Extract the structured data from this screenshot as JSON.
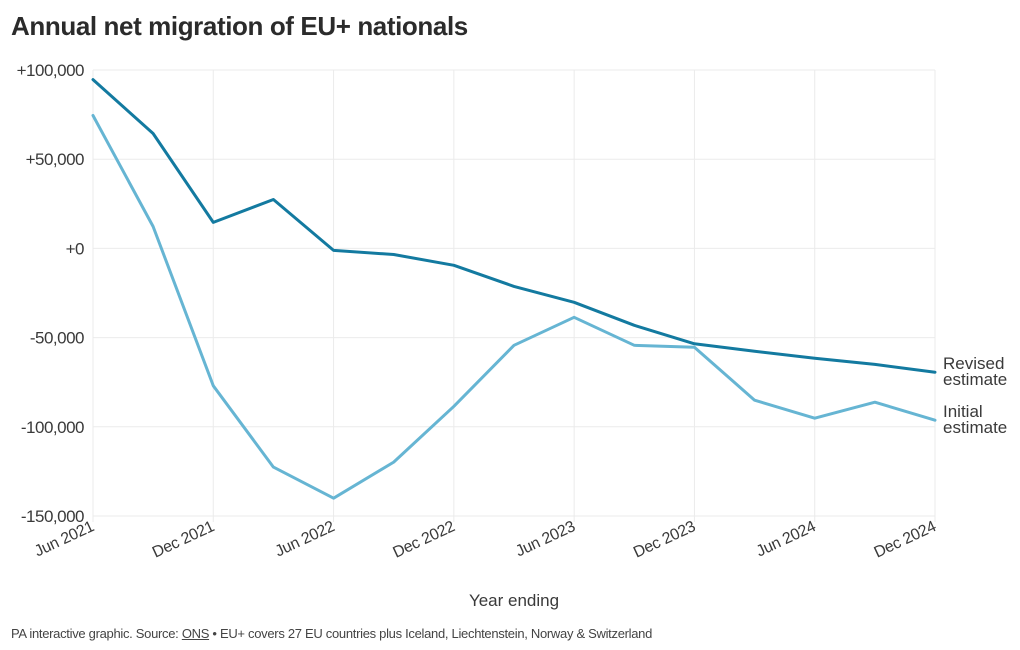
{
  "title": "Annual net migration of EU+ nationals",
  "footer": {
    "prefix": "PA interactive graphic. Source: ",
    "link": "ONS",
    "suffix": " • EU+ covers 27 EU countries plus Iceland, Liechtenstein, Norway & Switzerland"
  },
  "colors": {
    "revised": "#137aa0",
    "initial": "#66b5d3",
    "grid": "#ebebeb"
  },
  "chart_data": {
    "type": "line",
    "title": "Annual net migration of EU+ nationals",
    "xlabel": "Year ending",
    "ylabel": "",
    "x": [
      "Jun 2021",
      "Sep 2021",
      "Dec 2021",
      "Mar 2022",
      "Jun 2022",
      "Sep 2022",
      "Dec 2022",
      "Mar 2023",
      "Jun 2023",
      "Sep 2023",
      "Dec 2023",
      "Mar 2024",
      "Jun 2024",
      "Sep 2024",
      "Dec 2024"
    ],
    "xticks": [
      "Jun 2021",
      "Dec 2021",
      "Jun 2022",
      "Dec 2022",
      "Jun 2023",
      "Dec 2023",
      "Jun 2024",
      "Dec 2024"
    ],
    "yticks": [
      100000,
      50000,
      0,
      -50000,
      -100000,
      -150000
    ],
    "ytick_labels": [
      "+100,000",
      "+50,000",
      "+0",
      "-50,000",
      "-100,000",
      "-150,000"
    ],
    "ylim": [
      -150000,
      100000
    ],
    "grid": true,
    "legend": "inline-right",
    "series": [
      {
        "name": "Revised estimate",
        "label_lines": [
          "Revised",
          "estimate"
        ],
        "color_key": "revised",
        "values": [
          94600,
          64400,
          14600,
          27400,
          -1100,
          -3400,
          -9500,
          -21300,
          -30200,
          -43100,
          -53500,
          -57700,
          -61600,
          -65000,
          -69400
        ]
      },
      {
        "name": "Initial estimate",
        "label_lines": [
          "Initial",
          "estimate"
        ],
        "color_key": "initial",
        "values": [
          74500,
          12300,
          -77000,
          -122600,
          -140000,
          -119800,
          -88500,
          -54300,
          -38600,
          -54300,
          -55400,
          -85100,
          -95200,
          -86200,
          -96300
        ]
      }
    ]
  }
}
